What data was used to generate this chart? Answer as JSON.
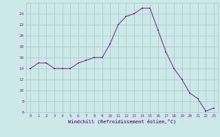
{
  "xlabel": "Windchill (Refroidissement éolien,°C)",
  "ylabel": "",
  "x": [
    0,
    1,
    2,
    3,
    4,
    5,
    6,
    7,
    8,
    9,
    10,
    11,
    12,
    13,
    14,
    15,
    16,
    17,
    18,
    19,
    20,
    21,
    22,
    23
  ],
  "y_values": [
    14,
    15,
    15,
    14,
    14,
    14,
    15,
    15.5,
    16,
    16,
    18.5,
    22,
    23.5,
    24,
    25,
    25,
    21,
    17,
    14,
    12,
    9.5,
    8.5,
    6.2,
    6.8
  ],
  "ylim": [
    6,
    26
  ],
  "yticks": [
    6,
    8,
    10,
    12,
    14,
    16,
    18,
    20,
    22,
    24
  ],
  "xlim": [
    -0.5,
    23.5
  ],
  "xticks": [
    0,
    1,
    2,
    3,
    4,
    5,
    6,
    7,
    8,
    9,
    10,
    11,
    12,
    13,
    14,
    15,
    16,
    17,
    18,
    19,
    20,
    21,
    22,
    23
  ],
  "line_color": "#7b2d8b",
  "marker_color": "#7b2d8b",
  "bg_color": "#cce8e8",
  "grid_color": "#aacccc",
  "tick_label_color": "#7b2d8b",
  "axis_label_color": "#7b2d8b"
}
